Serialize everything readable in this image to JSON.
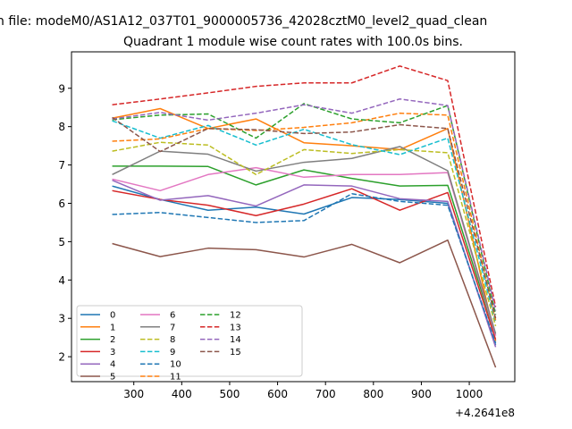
{
  "chart_data": {
    "type": "line",
    "suptitle": "n file: modeM0/AS1A12_037T01_9000005736_42028cztM0_level2_quad_clean",
    "title": "Quadrant 1 module wise count rates with 100.0s bins.",
    "xlabel": "",
    "ylabel": "",
    "x_offset_label": "+4.2641e8",
    "x": [
      255,
      355,
      455,
      555,
      655,
      755,
      855,
      955,
      1055
    ],
    "xlim": [
      170,
      1095
    ],
    "ylim": [
      1.35,
      9.95
    ],
    "xticks": [
      300,
      400,
      500,
      600,
      700,
      800,
      900,
      1000
    ],
    "yticks": [
      2,
      3,
      4,
      5,
      6,
      7,
      8,
      9
    ],
    "grid": false,
    "legend_position": "lower-left",
    "legend_columns": 3,
    "series": [
      {
        "name": "0",
        "color": "#1f77b4",
        "dash": "solid",
        "values": [
          6.45,
          6.1,
          5.82,
          5.9,
          5.72,
          6.15,
          6.1,
          6.0,
          2.3
        ]
      },
      {
        "name": "1",
        "color": "#ff7f0e",
        "dash": "solid",
        "values": [
          8.22,
          8.47,
          7.95,
          8.2,
          7.58,
          7.5,
          7.4,
          7.95,
          2.4
        ]
      },
      {
        "name": "2",
        "color": "#2ca02c",
        "dash": "solid",
        "values": [
          6.97,
          6.97,
          6.96,
          6.48,
          6.87,
          6.65,
          6.45,
          6.47,
          2.55
        ]
      },
      {
        "name": "3",
        "color": "#d62728",
        "dash": "solid",
        "values": [
          6.33,
          6.1,
          5.95,
          5.68,
          5.98,
          6.38,
          5.82,
          6.28,
          2.45
        ]
      },
      {
        "name": "4",
        "color": "#9467bd",
        "dash": "solid",
        "values": [
          6.6,
          6.08,
          6.2,
          5.93,
          6.48,
          6.45,
          6.12,
          6.05,
          2.25
        ]
      },
      {
        "name": "5",
        "color": "#8c564b",
        "dash": "solid",
        "values": [
          4.95,
          4.61,
          4.83,
          4.79,
          4.6,
          4.93,
          4.45,
          5.04,
          1.72
        ]
      },
      {
        "name": "6",
        "color": "#e377c2",
        "dash": "solid",
        "values": [
          6.63,
          6.33,
          6.75,
          6.93,
          6.68,
          6.75,
          6.75,
          6.8,
          2.55
        ]
      },
      {
        "name": "7",
        "color": "#7f7f7f",
        "dash": "solid",
        "values": [
          6.75,
          7.36,
          7.28,
          6.84,
          7.07,
          7.17,
          7.48,
          6.85,
          2.6
        ]
      },
      {
        "name": "8",
        "color": "#bcbd22",
        "dash": "dashed",
        "values": [
          7.36,
          7.59,
          7.52,
          6.75,
          7.4,
          7.3,
          7.4,
          7.32,
          2.8
        ]
      },
      {
        "name": "9",
        "color": "#17becf",
        "dash": "dashed",
        "values": [
          8.15,
          7.7,
          8.03,
          7.52,
          7.93,
          7.53,
          7.27,
          7.7,
          2.9
        ]
      },
      {
        "name": "10",
        "color": "#1f77b4",
        "dash": "dashed",
        "values": [
          5.71,
          5.76,
          5.63,
          5.5,
          5.55,
          6.25,
          6.05,
          5.95,
          2.35
        ]
      },
      {
        "name": "11",
        "color": "#ff7f0e",
        "dash": "dashed",
        "values": [
          7.62,
          7.68,
          7.95,
          7.9,
          7.98,
          8.1,
          8.35,
          8.3,
          2.95
        ]
      },
      {
        "name": "12",
        "color": "#2ca02c",
        "dash": "dashed",
        "values": [
          8.18,
          8.3,
          8.33,
          7.7,
          8.6,
          8.2,
          8.1,
          8.55,
          3.1
        ]
      },
      {
        "name": "13",
        "color": "#d62728",
        "dash": "dashed",
        "values": [
          8.57,
          8.72,
          8.88,
          9.05,
          9.14,
          9.14,
          9.58,
          9.2,
          3.3
        ]
      },
      {
        "name": "14",
        "color": "#9467bd",
        "dash": "dashed",
        "values": [
          8.2,
          8.37,
          8.17,
          8.35,
          8.57,
          8.35,
          8.72,
          8.55,
          3.2
        ]
      },
      {
        "name": "15",
        "color": "#8c564b",
        "dash": "dashed",
        "values": [
          8.24,
          7.35,
          7.95,
          7.92,
          7.82,
          7.86,
          8.05,
          7.95,
          3.0
        ]
      }
    ]
  }
}
